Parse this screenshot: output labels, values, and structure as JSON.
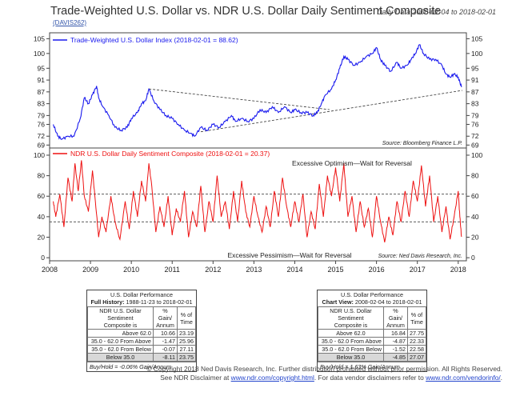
{
  "header": {
    "title": "Trade-Weighted U.S. Dollar vs. NDR U.S. Dollar Daily Sentiment Composite",
    "code": "(DAVIS262)",
    "date_range": "Daily Data 2008-02-04 to 2018-02-01"
  },
  "chart_data": [
    {
      "type": "line",
      "legend": "Trade-Weighted U.S. Dollar Index (2018-02-01 = 88.62)",
      "source": "Source:  Bloomberg Finance L.P.",
      "y_ticks": [
        69,
        72,
        76,
        79,
        83,
        87,
        91,
        95,
        100,
        105
      ],
      "ylim": [
        68,
        107
      ],
      "color": "#1a1aee",
      "x": [
        2008.09,
        2008.2,
        2008.3,
        2008.45,
        2008.6,
        2008.75,
        2008.85,
        2008.95,
        2009.05,
        2009.15,
        2009.2,
        2009.3,
        2009.45,
        2009.6,
        2009.75,
        2009.9,
        2010.0,
        2010.15,
        2010.25,
        2010.35,
        2010.43,
        2010.55,
        2010.7,
        2010.85,
        2011.0,
        2011.15,
        2011.3,
        2011.45,
        2011.55,
        2011.7,
        2011.85,
        2012.0,
        2012.15,
        2012.3,
        2012.45,
        2012.55,
        2012.7,
        2012.85,
        2013.0,
        2013.15,
        2013.3,
        2013.45,
        2013.6,
        2013.75,
        2013.9,
        2014.0,
        2014.15,
        2014.3,
        2014.45,
        2014.55,
        2014.65,
        2014.75,
        2014.9,
        2015.0,
        2015.1,
        2015.2,
        2015.3,
        2015.45,
        2015.6,
        2015.75,
        2015.9,
        2016.0,
        2016.1,
        2016.2,
        2016.35,
        2016.5,
        2016.6,
        2016.75,
        2016.85,
        2016.95,
        2017.05,
        2017.15,
        2017.3,
        2017.45,
        2017.6,
        2017.7,
        2017.8,
        2017.9,
        2018.0,
        2018.08
      ],
      "values": [
        76,
        72,
        71,
        72,
        72,
        78,
        85,
        83,
        86,
        89,
        85,
        82,
        79,
        75,
        74,
        75,
        78,
        80,
        83,
        84,
        88,
        84,
        81,
        79,
        78,
        76,
        74,
        73,
        72,
        75,
        74,
        76,
        75,
        77,
        79,
        77,
        78,
        77,
        78,
        81,
        80,
        82,
        80,
        82,
        80,
        81,
        80,
        80,
        79,
        80,
        83,
        86,
        88,
        91,
        95,
        99,
        98,
        96,
        97,
        99,
        100,
        102,
        98,
        96,
        94,
        97,
        95,
        96,
        98,
        100,
        103,
        100,
        98,
        98,
        96,
        93,
        92,
        93,
        92,
        88.62
      ],
      "annotations": [
        {
          "type": "trendline",
          "x": [
            2010.43,
            2014.85
          ],
          "values": [
            88,
            81
          ],
          "style": "dashed"
        },
        {
          "type": "trendline",
          "x": [
            2011.7,
            2018.1
          ],
          "values": [
            73.5,
            87.5
          ],
          "style": "dashed"
        }
      ]
    },
    {
      "type": "line",
      "legend": "NDR U.S. Dollar Daily Sentiment Composite (2018-02-01 = 20.37)",
      "source": "Source:  Ned Davis Research, Inc.",
      "y_ticks": [
        0,
        20,
        40,
        60,
        80,
        100
      ],
      "ylim": [
        -3,
        107
      ],
      "color": "#ee1111",
      "upper_label": "Excessive Optimism—Wait for Reversal",
      "lower_label": "Excessive Pessimism—Wait for Reversal",
      "thresholds": [
        62,
        35
      ],
      "x_ticks": [
        "2008",
        "2009",
        "2010",
        "2011",
        "2012",
        "2013",
        "2014",
        "2015",
        "2016",
        "2017",
        "2018"
      ],
      "x": [
        2008.09,
        2008.15,
        2008.25,
        2008.35,
        2008.45,
        2008.55,
        2008.62,
        2008.7,
        2008.78,
        2008.85,
        2008.95,
        2009.05,
        2009.12,
        2009.2,
        2009.28,
        2009.38,
        2009.5,
        2009.6,
        2009.72,
        2009.85,
        2009.95,
        2010.05,
        2010.15,
        2010.25,
        2010.35,
        2010.43,
        2010.5,
        2010.6,
        2010.7,
        2010.8,
        2010.9,
        2011.0,
        2011.1,
        2011.2,
        2011.3,
        2011.4,
        2011.5,
        2011.6,
        2011.7,
        2011.8,
        2011.9,
        2012.0,
        2012.1,
        2012.2,
        2012.3,
        2012.4,
        2012.5,
        2012.6,
        2012.7,
        2012.8,
        2012.9,
        2013.0,
        2013.1,
        2013.2,
        2013.3,
        2013.4,
        2013.5,
        2013.6,
        2013.7,
        2013.8,
        2013.9,
        2014.0,
        2014.1,
        2014.2,
        2014.3,
        2014.4,
        2014.5,
        2014.6,
        2014.7,
        2014.8,
        2014.9,
        2015.0,
        2015.1,
        2015.2,
        2015.3,
        2015.4,
        2015.5,
        2015.6,
        2015.7,
        2015.8,
        2015.9,
        2016.0,
        2016.1,
        2016.2,
        2016.3,
        2016.4,
        2016.5,
        2016.6,
        2016.7,
        2016.8,
        2016.9,
        2017.0,
        2017.1,
        2017.2,
        2017.3,
        2017.4,
        2017.5,
        2017.6,
        2017.7,
        2017.8,
        2017.9,
        2018.0,
        2018.04,
        2018.08
      ],
      "values": [
        55,
        40,
        62,
        30,
        78,
        55,
        92,
        65,
        95,
        60,
        45,
        85,
        55,
        20,
        40,
        25,
        60,
        35,
        18,
        55,
        28,
        65,
        40,
        75,
        55,
        92,
        70,
        25,
        50,
        30,
        60,
        22,
        48,
        35,
        65,
        20,
        45,
        30,
        70,
        25,
        55,
        35,
        80,
        40,
        55,
        28,
        65,
        35,
        75,
        45,
        30,
        60,
        40,
        25,
        50,
        30,
        65,
        40,
        78,
        50,
        30,
        55,
        35,
        62,
        20,
        45,
        28,
        72,
        40,
        80,
        60,
        88,
        55,
        92,
        40,
        60,
        25,
        55,
        30,
        48,
        20,
        60,
        35,
        15,
        40,
        22,
        55,
        35,
        65,
        40,
        75,
        55,
        90,
        50,
        80,
        35,
        60,
        25,
        50,
        18,
        40,
        65,
        40,
        20.37
      ]
    }
  ],
  "table_full": {
    "title": "U.S. Dollar Performance",
    "subtitle_bold": "Full History:",
    "subtitle_rest": " 1988-11-23 to 2018-02-01",
    "col1": "NDR U.S. Dollar Sentiment",
    "col1b": "Composite is",
    "col2": "% Gain/",
    "col2b": "Annum",
    "col3": "% of",
    "col3b": "Time",
    "rows": [
      {
        "label": "Above 62.0",
        "gain": "10.66",
        "time": "23.19"
      },
      {
        "label": "35.0 - 62.0 From Above",
        "gain": "-1.47",
        "time": "25.96"
      },
      {
        "label": "35.0 - 62.0 From Below",
        "gain": "-0.07",
        "time": "27.11"
      },
      {
        "label": "Below 35.0",
        "gain": "-8.11",
        "time": "23.75"
      }
    ],
    "footer": "Buy/Hold = -0.06% Gain/Annum"
  },
  "table_view": {
    "title": "U.S. Dollar Performance",
    "subtitle_bold": "Chart View:",
    "subtitle_rest": " 2008-02-04 to 2018-02-01",
    "col1": "NDR U.S. Dollar Sentiment",
    "col1b": "Composite is",
    "col2": "% Gain/",
    "col2b": "Annum",
    "col3": "% of",
    "col3b": "Time",
    "rows": [
      {
        "label": "Above 62.0",
        "gain": "16.84",
        "time": "27.75"
      },
      {
        "label": "35.0 - 62.0 From Above",
        "gain": "-4.87",
        "time": "22.33"
      },
      {
        "label": "35.0 - 62.0 From Below",
        "gain": "-1.52",
        "time": "22.58"
      },
      {
        "label": "Below 35.0",
        "gain": "-4.85",
        "time": "27.07"
      }
    ],
    "footer": "Buy/Hold = 1.63% Gain/Annum"
  },
  "footer": {
    "line1": "© Copyright 2018 Ned Davis Research, Inc. Further distribution prohibited without prior permission. All Rights Reserved.",
    "line2_a": "See NDR Disclaimer at ",
    "link1": "www.ndr.com/copyright.html",
    "line2_b": ". For data vendor disclaimers refer to ",
    "link2": "www.ndr.com/vendorinfo/",
    "line2_c": "."
  }
}
